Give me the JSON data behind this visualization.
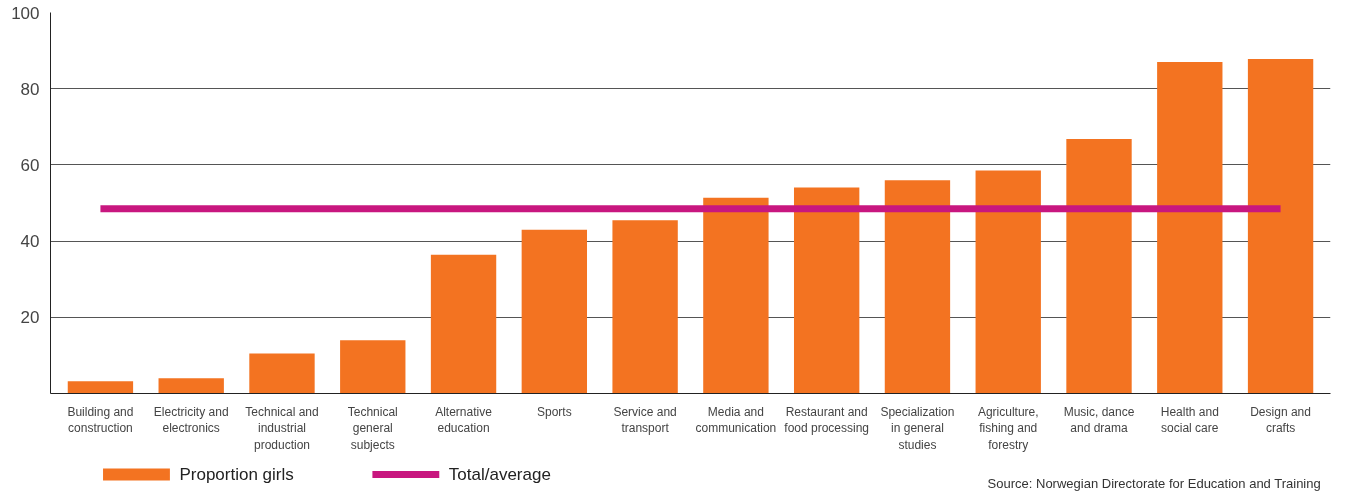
{
  "chart_data": {
    "type": "bar",
    "categories": [
      "Building and construction",
      "Electricity and electronics",
      "Technical and industrial production",
      "Technical general subjects",
      "Alternative education",
      "Sports",
      "Service and transport",
      "Media and communication",
      "Restaurant and food processing",
      "Specialization in general studies",
      "Agriculture, fishing and forestry",
      "Music, dance and drama",
      "Health and social care",
      "Design and crafts"
    ],
    "series": [
      {
        "name": "Proportion girls",
        "color": "#f37321",
        "values": [
          3.2,
          4,
          10.5,
          14,
          36.4,
          43,
          45.5,
          51.4,
          54.1,
          56,
          58.5,
          66.8,
          87,
          87.8
        ]
      },
      {
        "name": "Total/average",
        "type": "line",
        "color": "#c8177f",
        "values": [
          48.5,
          48.5,
          48.5,
          48.5,
          48.5,
          48.5,
          48.5,
          48.5,
          48.5,
          48.5,
          48.5,
          48.5,
          48.5,
          48.5
        ]
      }
    ],
    "ylim": [
      0,
      100
    ],
    "yticks": [
      20,
      40,
      60,
      80,
      100
    ],
    "grid": "y",
    "legend": "bottom left",
    "annotations": [
      "Source: Norwegian Directorate for Education and Training"
    ]
  }
}
